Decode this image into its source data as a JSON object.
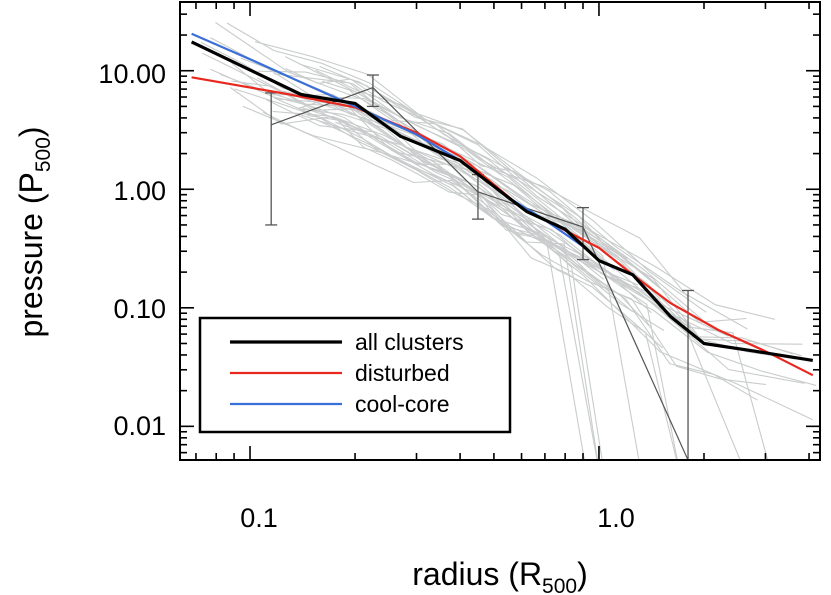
{
  "chart_data": {
    "type": "line",
    "xscale": "log",
    "yscale": "log",
    "xlim": [
      0.063,
      4.3
    ],
    "ylim": [
      0.0052,
      38
    ],
    "xlabel_main": "radius (R",
    "xlabel_sub": "500",
    "xlabel_close": ")",
    "ylabel_main": "pressure (P",
    "ylabel_sub": "500",
    "ylabel_close": ")",
    "x_ticks": [
      {
        "value": 0.1,
        "label": "0.1"
      },
      {
        "value": 1.0,
        "label": "1.0"
      }
    ],
    "y_ticks": [
      {
        "value": 0.01,
        "label": "0.01"
      },
      {
        "value": 0.1,
        "label": "0.10"
      },
      {
        "value": 1.0,
        "label": "1.00"
      },
      {
        "value": 10.0,
        "label": "10.00"
      }
    ],
    "legend_position": "bottom-left",
    "series": [
      {
        "name": "all clusters",
        "color": "#000000",
        "x": [
          0.068,
          0.14,
          0.2,
          0.27,
          0.4,
          0.62,
          0.8,
          1.0,
          1.25,
          1.6,
          2.0,
          2.8,
          4.1
        ],
        "y": [
          17.5,
          6.3,
          5.3,
          2.8,
          1.75,
          0.65,
          0.46,
          0.25,
          0.19,
          0.085,
          0.05,
          0.043,
          0.036
        ]
      },
      {
        "name": "disturbed",
        "color": "#e8281e",
        "x": [
          0.068,
          0.13,
          0.2,
          0.3,
          0.4,
          0.6,
          0.8,
          1.0,
          1.25,
          1.6,
          2.2,
          3.0,
          4.1
        ],
        "y": [
          8.8,
          6.3,
          4.9,
          3.0,
          1.9,
          0.7,
          0.45,
          0.32,
          0.19,
          0.11,
          0.065,
          0.043,
          0.027
        ]
      },
      {
        "name": "cool-core",
        "color": "#3a6fd8",
        "x": [
          0.068,
          0.1,
          0.14,
          0.2,
          0.3,
          0.4,
          0.55,
          0.7,
          0.9
        ],
        "y": [
          20.5,
          12.5,
          8.0,
          5.0,
          2.9,
          1.75,
          0.85,
          0.55,
          0.33
        ]
      }
    ],
    "binned_points": {
      "color": "#555555",
      "x": [
        0.115,
        0.225,
        0.45,
        0.9,
        1.8
      ],
      "y": [
        3.5,
        7.2,
        0.95,
        0.48,
        0.0052
      ],
      "y_err_low": [
        0.5,
        5.0,
        0.56,
        0.255,
        0.0052
      ],
      "y_err_high": [
        6.5,
        9.2,
        1.33,
        0.7,
        0.14
      ]
    },
    "individual_profile_count": 40
  }
}
